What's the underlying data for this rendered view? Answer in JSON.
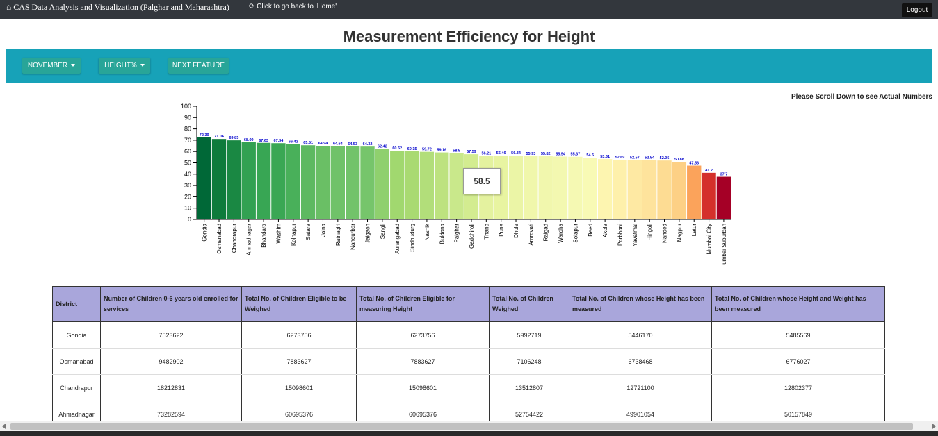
{
  "nav": {
    "brand": "CAS Data Analysis and Visualization (Palghar and Maharashtra)",
    "home_link": "Click to go back to 'Home'",
    "logout": "Logout"
  },
  "page_title": "Measurement Efficiency for Height",
  "toolbar": {
    "month_dropdown": "NOVEMBER",
    "metric_dropdown": "HEIGHT%",
    "next_button": "NEXT FEATURE"
  },
  "scroll_note": "Please Scroll Down to see Actual Numbers",
  "tooltip_value": "58.5",
  "chart_data": {
    "type": "bar",
    "ylim": [
      0,
      100
    ],
    "yticks": [
      0,
      10,
      20,
      30,
      40,
      50,
      60,
      70,
      80,
      90,
      100
    ],
    "categories": [
      "Gondia",
      "Osmanabad",
      "Chandrapur",
      "Ahmadnagar",
      "Bhandara",
      "Washim",
      "Kolhapur",
      "Satara",
      "Jalna",
      "Ratnagiri",
      "Nandurbar",
      "Jalgaon",
      "Sangli",
      "Aurangabad",
      "Sindhudurg",
      "Nashik",
      "Buldana",
      "Palghar",
      "Gadchiroli",
      "Thane",
      "Pune",
      "Dhule",
      "Amravati",
      "Raigad",
      "Wardha",
      "Solapur",
      "Beed",
      "Akola",
      "Parbhani",
      "Yavatmal",
      "Hingoli",
      "Nanded",
      "Nagpur",
      "Latur",
      "Mumbai City",
      "umbai Suburban"
    ],
    "values": [
      72.39,
      71.06,
      69.85,
      68.09,
      67.63,
      67.34,
      66.42,
      65.51,
      64.94,
      64.64,
      64.53,
      64.32,
      62.42,
      60.62,
      60.15,
      59.72,
      59.16,
      58.5,
      57.59,
      56.21,
      56.46,
      56.34,
      55.93,
      55.82,
      55.54,
      55.37,
      54.6,
      53.31,
      52.69,
      52.57,
      52.54,
      52.05,
      50.88,
      47.53,
      41.2,
      37.7
    ],
    "value_labels": [
      "72.39",
      "71.06",
      "69.85",
      "68.09",
      "67.63",
      "67.34",
      "66.42",
      "65.51",
      "64.94",
      "64.64",
      "64.53",
      "64.32",
      "62.42",
      "60.62",
      "60.15",
      "59.72",
      "59.16",
      "58.5",
      "57.59",
      "56.21",
      "56.46",
      "56.34",
      "55.93",
      "55.82",
      "55.54",
      "55.37",
      "54.6",
      "53.31",
      "52.69",
      "52.57",
      "52.54",
      "52.05",
      "50.88",
      "47.53",
      "41.2",
      "37.7"
    ],
    "colors": [
      "#006837",
      "#0e7b3b",
      "#1a8843",
      "#32a152",
      "#38a654",
      "#3aa754",
      "#49b05a",
      "#5eb961",
      "#6abf65",
      "#70c269",
      "#72c36a",
      "#76c56b",
      "#8fd06e",
      "#a1d86f",
      "#a9da72",
      "#b2de7a",
      "#bde27f",
      "#c9e88b",
      "#d3ec90",
      "#e4f29f",
      "#e8f4a1",
      "#ebf5a6",
      "#f0f7ab",
      "#f1f7ad",
      "#f3f8b0",
      "#f5f9b3",
      "#f8fab5",
      "#fdf5b0",
      "#fef0ab",
      "#fee9a3",
      "#fee39c",
      "#fddc93",
      "#fdd085",
      "#fba35b",
      "#d4302b",
      "#a50026"
    ],
    "value_label_color": "#0000cc"
  },
  "table": {
    "headers": [
      "District",
      "Number of Children 0-6 years old enrolled for services",
      "Total No. of Children Eligible to be Weighed",
      "Total No. of Children Eligible for measuring Height",
      "Total No. of Children Weighed",
      "Total No. of Children whose Height has been measured",
      "Total No. of Children whose Height and Weight has been measured"
    ],
    "rows": [
      [
        "Gondia",
        "7523622",
        "6273756",
        "6273756",
        "5992719",
        "5446170",
        "5485569"
      ],
      [
        "Osmanabad",
        "9482902",
        "7883627",
        "7883627",
        "7106248",
        "6738468",
        "6776027"
      ],
      [
        "Chandrapur",
        "18212831",
        "15098601",
        "15098601",
        "13512807",
        "12721100",
        "12802377"
      ],
      [
        "Ahmadnagar",
        "73282594",
        "60695376",
        "60695376",
        "52754422",
        "49901054",
        "50157849"
      ]
    ]
  }
}
